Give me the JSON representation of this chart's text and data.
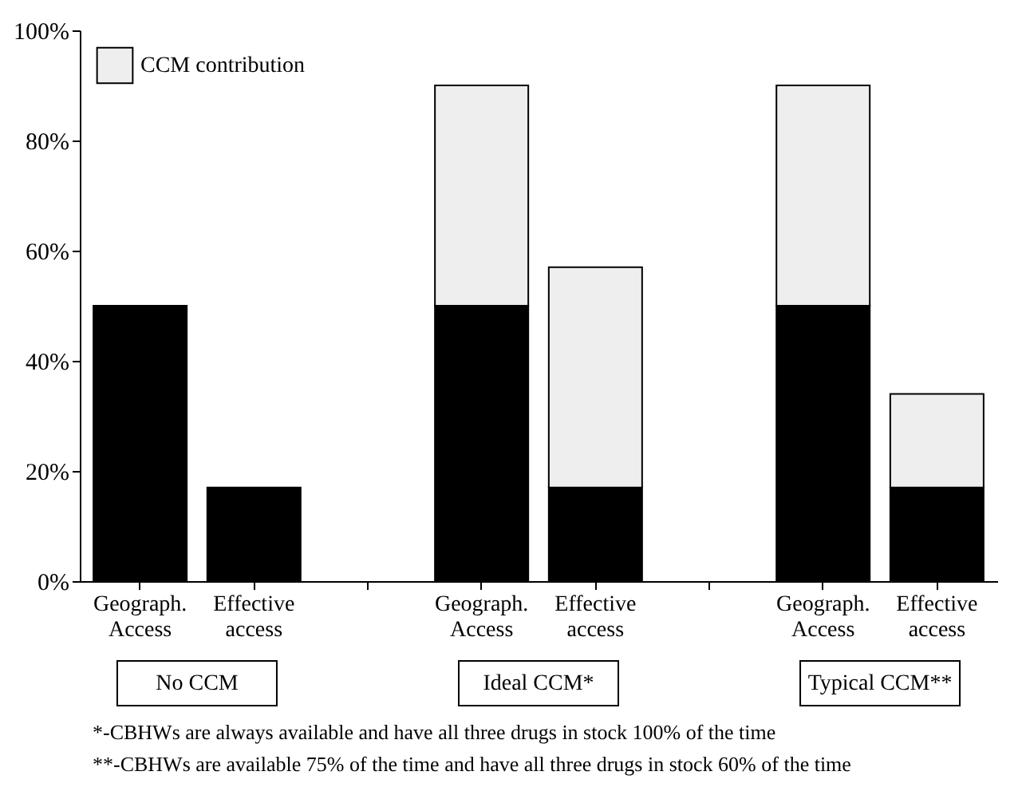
{
  "chart_data": {
    "type": "bar",
    "stacked": true,
    "categories": [
      "Geograph. Access",
      "Effective access",
      null,
      "Geograph. Access",
      "Effective access",
      null,
      "Geograph. Access",
      "Effective access"
    ],
    "series": [
      {
        "color": "#000000",
        "values": [
          50,
          17,
          null,
          50,
          17,
          null,
          50,
          17
        ]
      },
      {
        "name": "CCM contribution",
        "color": "#eeeeee",
        "values": [
          null,
          null,
          null,
          40,
          40,
          null,
          40,
          17
        ]
      }
    ],
    "ylim": [
      0,
      100
    ],
    "yticks": [
      {
        "value": 0,
        "label": "0%"
      },
      {
        "value": 20,
        "label": "20%"
      },
      {
        "value": 40,
        "label": "40%"
      },
      {
        "value": 60,
        "label": "60%"
      },
      {
        "value": 80,
        "label": "80%"
      },
      {
        "value": 100,
        "label": "100%"
      }
    ],
    "legend": "top left",
    "grid": false,
    "annotations": [
      "No CCM",
      "Ideal CCM*",
      "Typical CCM**",
      "*-CBHWs are always available and have all three drugs in stock 100% of the time",
      "**-CBHWs are available 75% of the time and have all three drugs in stock 60% of the time"
    ]
  }
}
